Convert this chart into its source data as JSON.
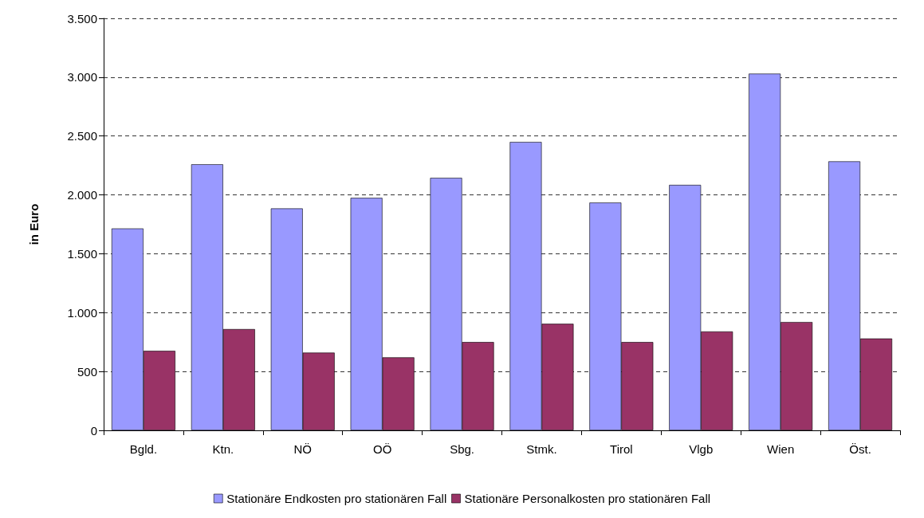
{
  "chart_data": {
    "type": "bar",
    "ylabel": "in Euro",
    "categories": [
      "Bgld.",
      "Ktn.",
      "NÖ",
      "OÖ",
      "Sbg.",
      "Stmk.",
      "Tirol",
      "Vlgb",
      "Wien",
      "Öst."
    ],
    "series": [
      {
        "name": "Stationäre Endkosten pro stationären Fall",
        "color": "#9999ff",
        "values": [
          1715,
          2260,
          1885,
          1975,
          2145,
          2450,
          1935,
          2085,
          3030,
          2285
        ]
      },
      {
        "name": "Stationäre Personalkosten pro stationären Fall",
        "color": "#993366",
        "values": [
          675,
          860,
          660,
          620,
          750,
          905,
          750,
          840,
          920,
          780
        ]
      }
    ],
    "ylim": [
      0,
      3500
    ],
    "yticks": [
      {
        "value": 0,
        "label": "0"
      },
      {
        "value": 500,
        "label": "500"
      },
      {
        "value": 1000,
        "label": "1.000"
      },
      {
        "value": 1500,
        "label": "1.500"
      },
      {
        "value": 2000,
        "label": "2.000"
      },
      {
        "value": 2500,
        "label": "2.500"
      },
      {
        "value": 3000,
        "label": "3.000"
      },
      {
        "value": 3500,
        "label": "3.500"
      }
    ],
    "grid": "y",
    "legend": "bottom"
  }
}
